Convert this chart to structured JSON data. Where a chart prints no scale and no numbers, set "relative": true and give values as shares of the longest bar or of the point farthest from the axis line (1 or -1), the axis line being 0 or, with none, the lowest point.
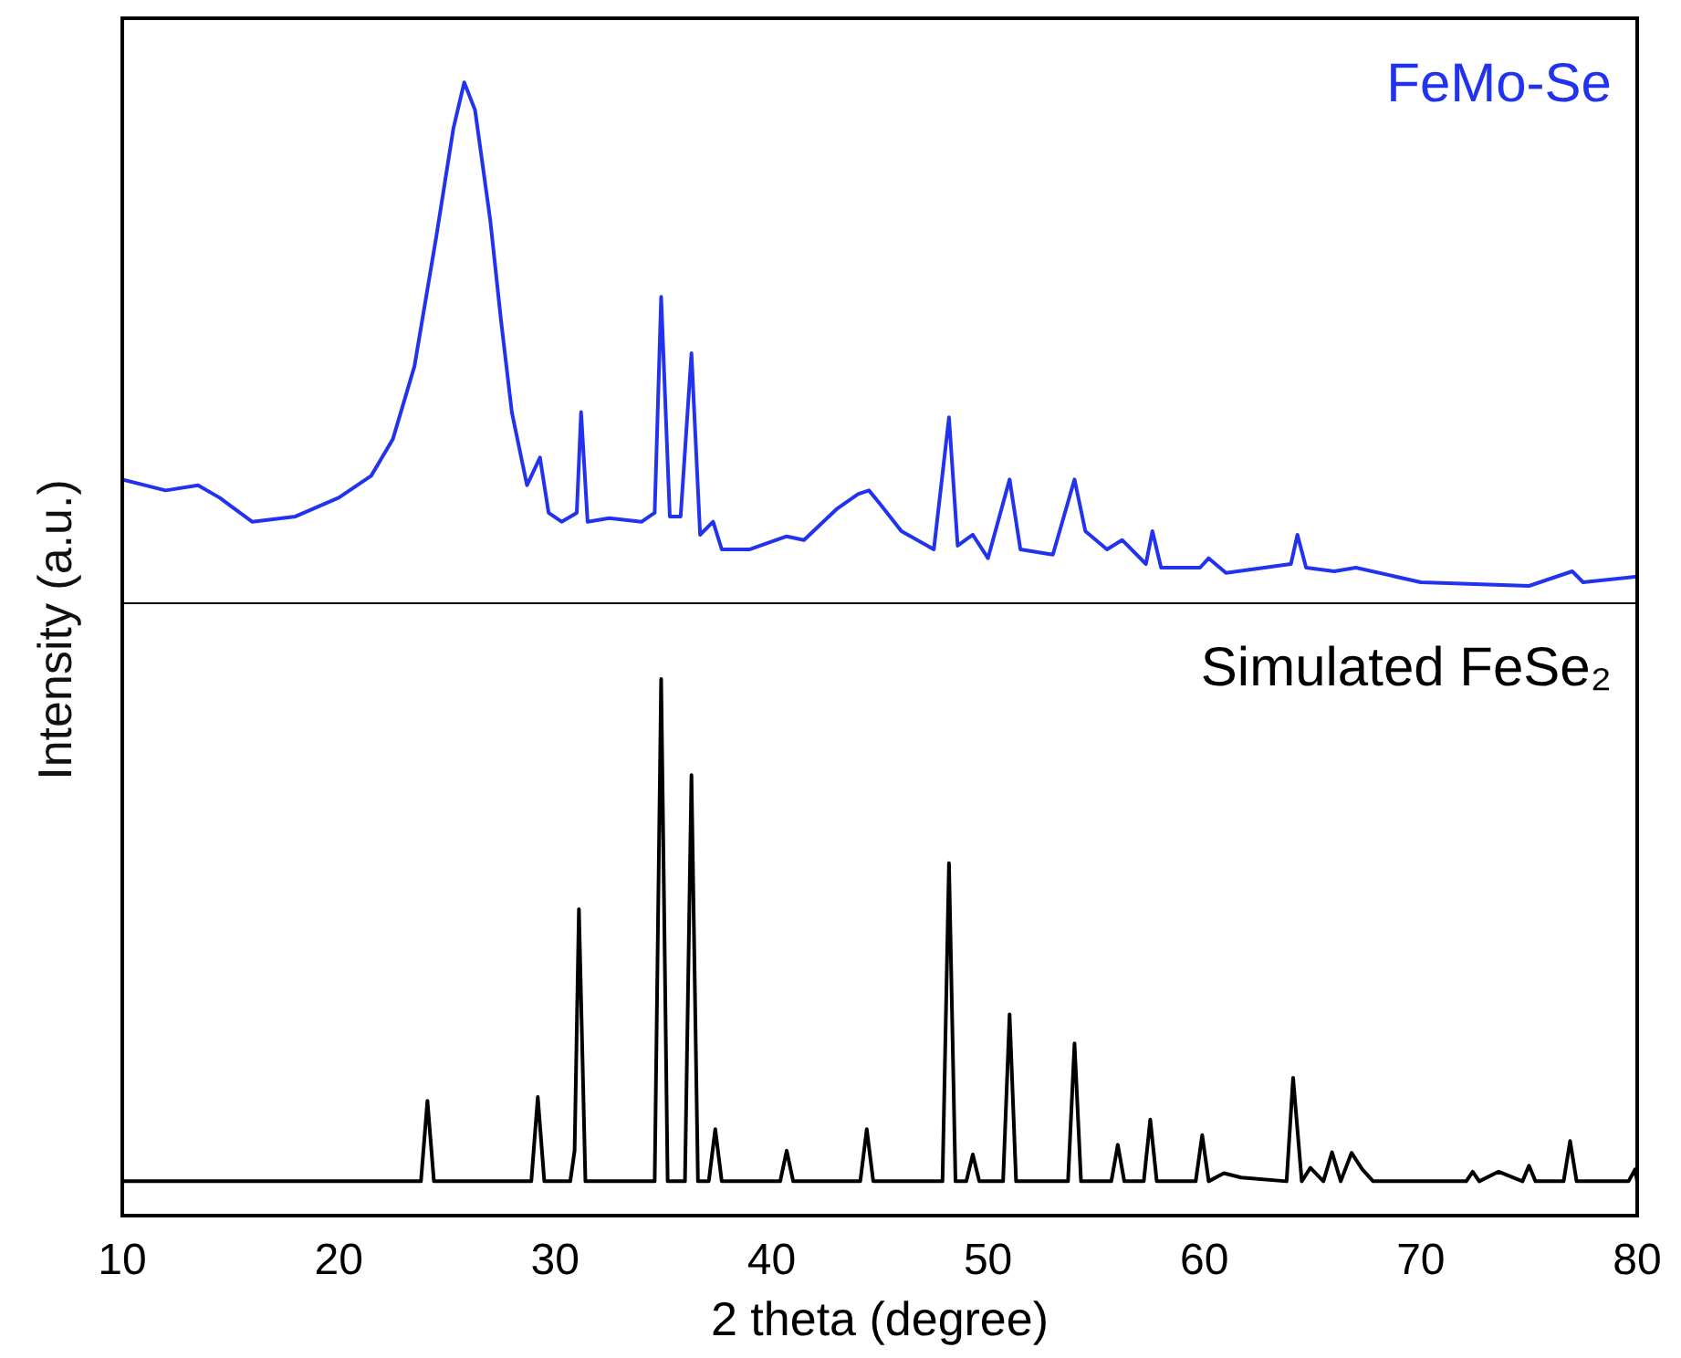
{
  "chart_data": [
    {
      "type": "line",
      "ylabel": "Intensity (a.u.)",
      "relative": true,
      "xlim": [
        10,
        80
      ],
      "tick_labels": false,
      "marker": "none",
      "series": [
        {
          "name": "FeMo-Se",
          "color": "#2233ee",
          "x": [
            10,
            12,
            13.5,
            14.5,
            16,
            18,
            20,
            21.5,
            22.5,
            23.5,
            24.5,
            25.3,
            25.8,
            26.3,
            27,
            27.5,
            28,
            28.7,
            29.3,
            29.7,
            30.3,
            31.0,
            31.2,
            31.5,
            32.5,
            34,
            34.6,
            34.9,
            35.3,
            35.8,
            36.3,
            36.7,
            37.3,
            37.7,
            39,
            40.7,
            41.5,
            43,
            44,
            44.5,
            45,
            46,
            47.5,
            48.2,
            48.6,
            49.3,
            50,
            51,
            51.5,
            53,
            54,
            54.5,
            55.5,
            56.2,
            57.3,
            57.6,
            58,
            59.8,
            60.2,
            61,
            64,
            64.3,
            64.7,
            66,
            67,
            70,
            75,
            77,
            77.5,
            80
          ],
          "values": [
            0.239,
            0.218,
            0.228,
            0.204,
            0.158,
            0.168,
            0.204,
            0.246,
            0.316,
            0.456,
            0.702,
            0.912,
            1,
            0.947,
            0.737,
            0.544,
            0.368,
            0.228,
            0.281,
            0.175,
            0.158,
            0.175,
            0.368,
            0.158,
            0.165,
            0.158,
            0.175,
            0.589,
            0.168,
            0.168,
            0.481,
            0.133,
            0.158,
            0.105,
            0.105,
            0.13,
            0.123,
            0.182,
            0.211,
            0.218,
            0.193,
            0.14,
            0.105,
            0.358,
            0.112,
            0.133,
            0.088,
            0.239,
            0.105,
            0.095,
            0.239,
            0.14,
            0.105,
            0.123,
            0.077,
            0.14,
            0.07,
            0.07,
            0.088,
            0.06,
            0.077,
            0.133,
            0.07,
            0.063,
            0.07,
            0.042,
            0.035,
            0.063,
            0.042,
            0.053
          ]
        }
      ]
    },
    {
      "type": "line",
      "xlabel": "2 theta (degree)",
      "relative": true,
      "xlim": [
        10,
        80
      ],
      "xticks": [
        10,
        20,
        30,
        40,
        50,
        60,
        70,
        80
      ],
      "tick_labels": "x",
      "marker": "none",
      "series": [
        {
          "name": "Simulated FeSe₂",
          "color": "#000000",
          "x": [
            10,
            23.8,
            24.1,
            24.4,
            28.9,
            29.2,
            29.5,
            30.7,
            30.9,
            31.1,
            31.4,
            34.6,
            34.9,
            35.2,
            36.0,
            36.3,
            36.6,
            37.1,
            37.4,
            37.7,
            40.4,
            40.7,
            41.0,
            44.1,
            44.4,
            44.7,
            47.9,
            48.2,
            48.5,
            49.0,
            49.3,
            49.6,
            50.7,
            51.0,
            51.3,
            53.7,
            54.0,
            54.3,
            55.7,
            56.0,
            56.3,
            57.2,
            57.5,
            57.8,
            59.6,
            59.9,
            60.2,
            60.9,
            61.7,
            63.8,
            64.1,
            64.5,
            64.9,
            65.5,
            65.9,
            66.3,
            66.8,
            67.3,
            67.8,
            72.1,
            72.4,
            72.7,
            73.6,
            74.7,
            75.0,
            75.3,
            76.6,
            76.9,
            77.2,
            79.6,
            79.9,
            80
          ],
          "values": [
            0.064,
            0.064,
            0.214,
            0.064,
            0.064,
            0.221,
            0.064,
            0.064,
            0.121,
            0.571,
            0.064,
            0.064,
            1,
            0.064,
            0.064,
            0.821,
            0.064,
            0.064,
            0.161,
            0.064,
            0.064,
            0.121,
            0.064,
            0.064,
            0.161,
            0.064,
            0.064,
            0.657,
            0.064,
            0.064,
            0.114,
            0.064,
            0.064,
            0.375,
            0.064,
            0.064,
            0.321,
            0.064,
            0.064,
            0.132,
            0.064,
            0.064,
            0.179,
            0.064,
            0.064,
            0.15,
            0.064,
            0.079,
            0.071,
            0.064,
            0.257,
            0.064,
            0.089,
            0.064,
            0.118,
            0.064,
            0.117,
            0.086,
            0.064,
            0.064,
            0.082,
            0.064,
            0.082,
            0.064,
            0.093,
            0.064,
            0.064,
            0.139,
            0.064,
            0.064,
            0.086,
            0.064
          ]
        }
      ]
    }
  ]
}
